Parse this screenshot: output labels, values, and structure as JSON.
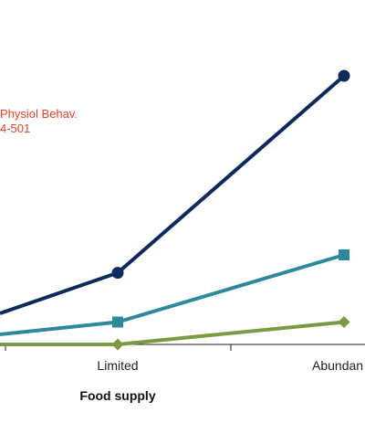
{
  "chart_data": {
    "type": "line",
    "categories": [
      "Limited",
      "Abundant"
    ],
    "x_visible_labels": [
      "Limited",
      "Abundan"
    ],
    "xlabel": "Food supply",
    "ylabel": "",
    "title": "",
    "series": [
      {
        "key": "circle",
        "marker": "circle",
        "color": "#0d2a5c",
        "values": [
          1.6,
          6.0
        ]
      },
      {
        "key": "square",
        "marker": "square",
        "color": "#2e8a9a",
        "values": [
          0.5,
          2.0
        ]
      },
      {
        "key": "diamond",
        "marker": "diamond",
        "color": "#7a9a44",
        "values": [
          0.0,
          0.5
        ]
      }
    ],
    "annotation": [
      "Physiol Behav.",
      "4-501"
    ],
    "colors": {
      "axis": "#222222",
      "annotation": "#e8402a"
    },
    "ylim": [
      0,
      6.0
    ]
  }
}
